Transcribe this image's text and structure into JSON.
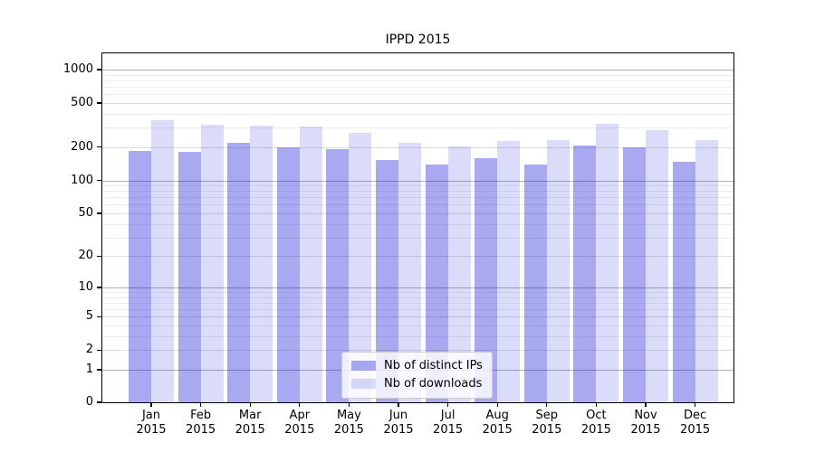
{
  "figure": {
    "background": "#ffffff"
  },
  "chart_data": {
    "type": "bar",
    "title": "IPPD 2015",
    "x_categories": [
      "Jan",
      "Feb",
      "Mar",
      "Apr",
      "May",
      "Jun",
      "Jul",
      "Aug",
      "Sep",
      "Oct",
      "Nov",
      "Dec"
    ],
    "x_sub_label": "2015",
    "series": [
      {
        "name": "Nb of distinct IPs",
        "color": "rgba(34,34,221,0.39)",
        "values": [
          185,
          180,
          218,
          198,
          190,
          154,
          139,
          160,
          139,
          205,
          198,
          147
        ]
      },
      {
        "name": "Nb of downloads",
        "color": "rgba(34,34,221,0.16)",
        "values": [
          348,
          317,
          312,
          307,
          268,
          220,
          202,
          225,
          230,
          327,
          284,
          233
        ]
      }
    ],
    "y_scale": "log1p",
    "ylim": [
      0,
      1400
    ],
    "y_ticks": [
      0,
      1,
      2,
      5,
      10,
      20,
      50,
      100,
      200,
      500,
      1000
    ],
    "grid": {
      "major": [
        1,
        10,
        100,
        1000
      ],
      "mid": [
        2,
        5,
        20,
        50,
        200,
        500
      ],
      "minor": [
        3,
        4,
        6,
        7,
        8,
        9,
        30,
        40,
        60,
        70,
        80,
        90,
        300,
        400,
        600,
        700,
        800,
        900
      ]
    },
    "grid_colors": {
      "major": "#b0b0b0",
      "mid": "#dcdcdc",
      "minor": "#ececec"
    },
    "axis_color": "#000000",
    "legend_position": "lower-center-inside",
    "grid_on": true
  }
}
